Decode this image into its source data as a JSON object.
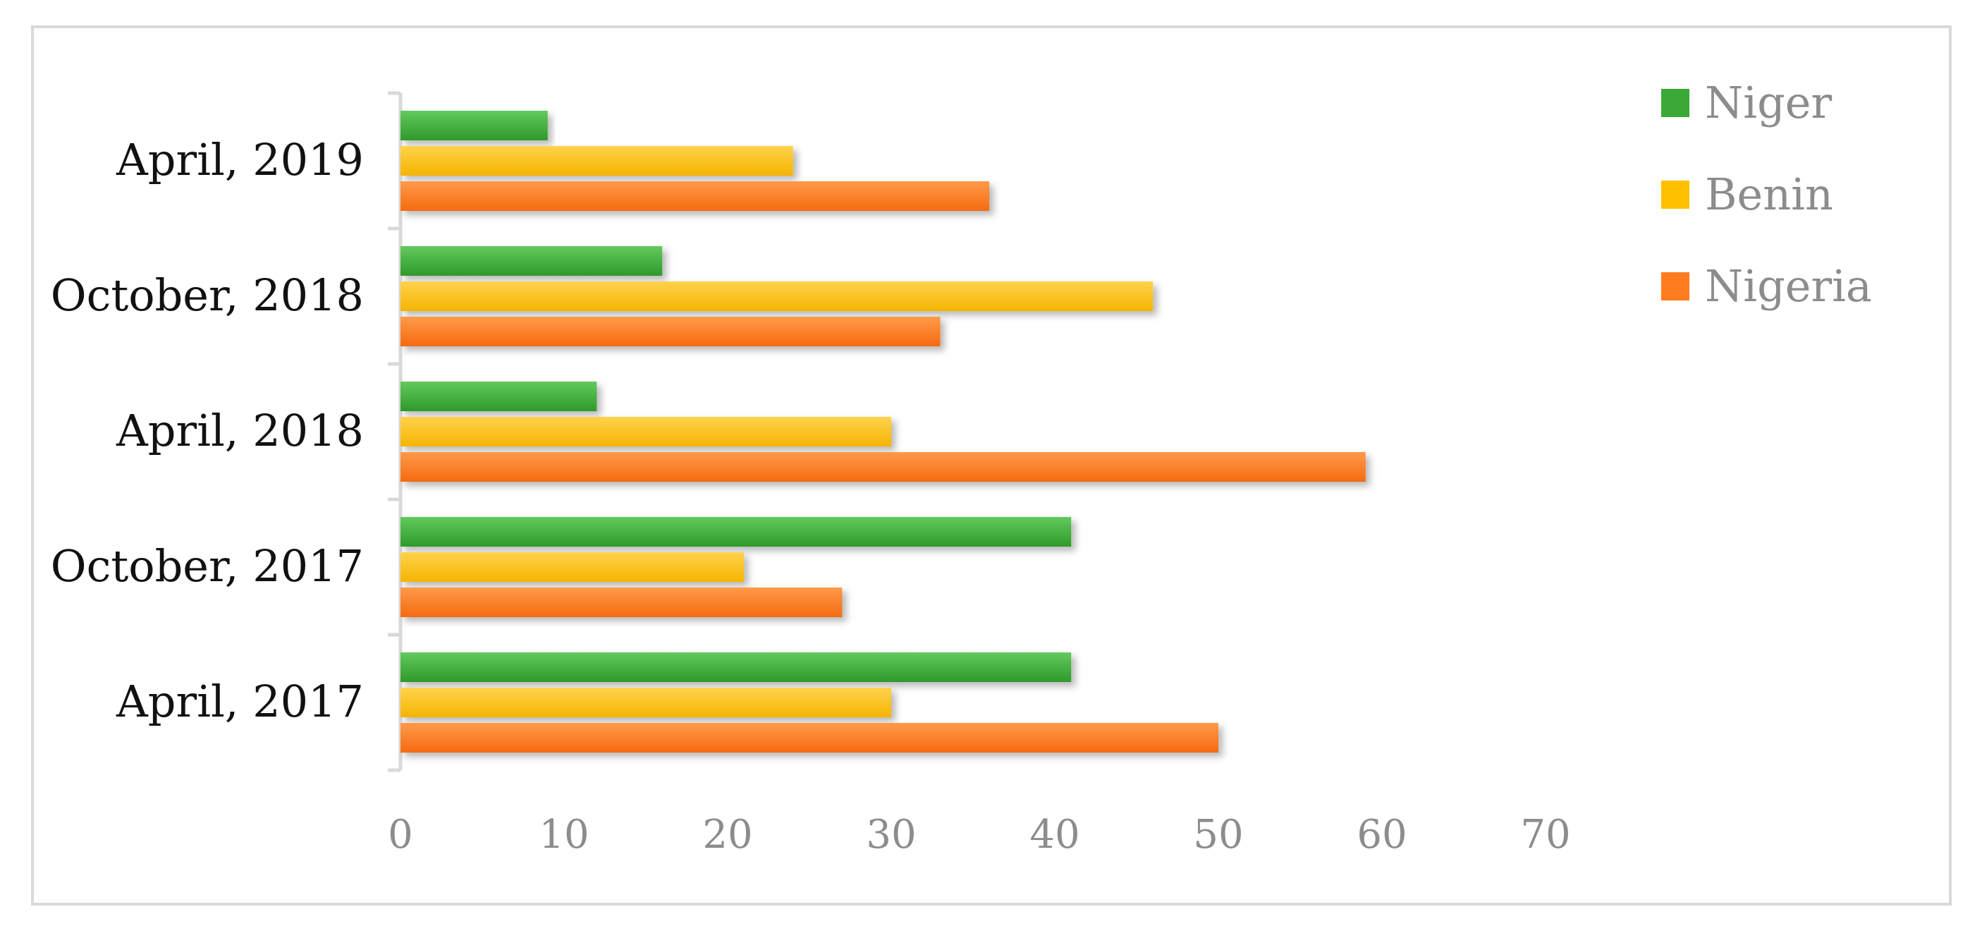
{
  "chart_data": {
    "type": "bar",
    "orientation": "horizontal",
    "categories": [
      "April, 2017",
      "October, 2017",
      "April, 2018",
      "October, 2018",
      "April, 2019"
    ],
    "series": [
      {
        "name": "Niger",
        "color": "#3aa935",
        "values": [
          41,
          41,
          12,
          16,
          9
        ]
      },
      {
        "name": "Benin",
        "color": "#ffc000",
        "values": [
          30,
          21,
          30,
          46,
          24
        ]
      },
      {
        "name": "Nigeria",
        "color": "#ff7c1f",
        "values": [
          50,
          27,
          59,
          33,
          36
        ]
      }
    ],
    "xlim": [
      0,
      70
    ],
    "x_ticks": [
      "0",
      "10",
      "20",
      "30",
      "40",
      "50",
      "60",
      "70"
    ],
    "title": "",
    "xlabel": "",
    "ylabel": "",
    "grid": false,
    "legend_position": "top-right"
  }
}
